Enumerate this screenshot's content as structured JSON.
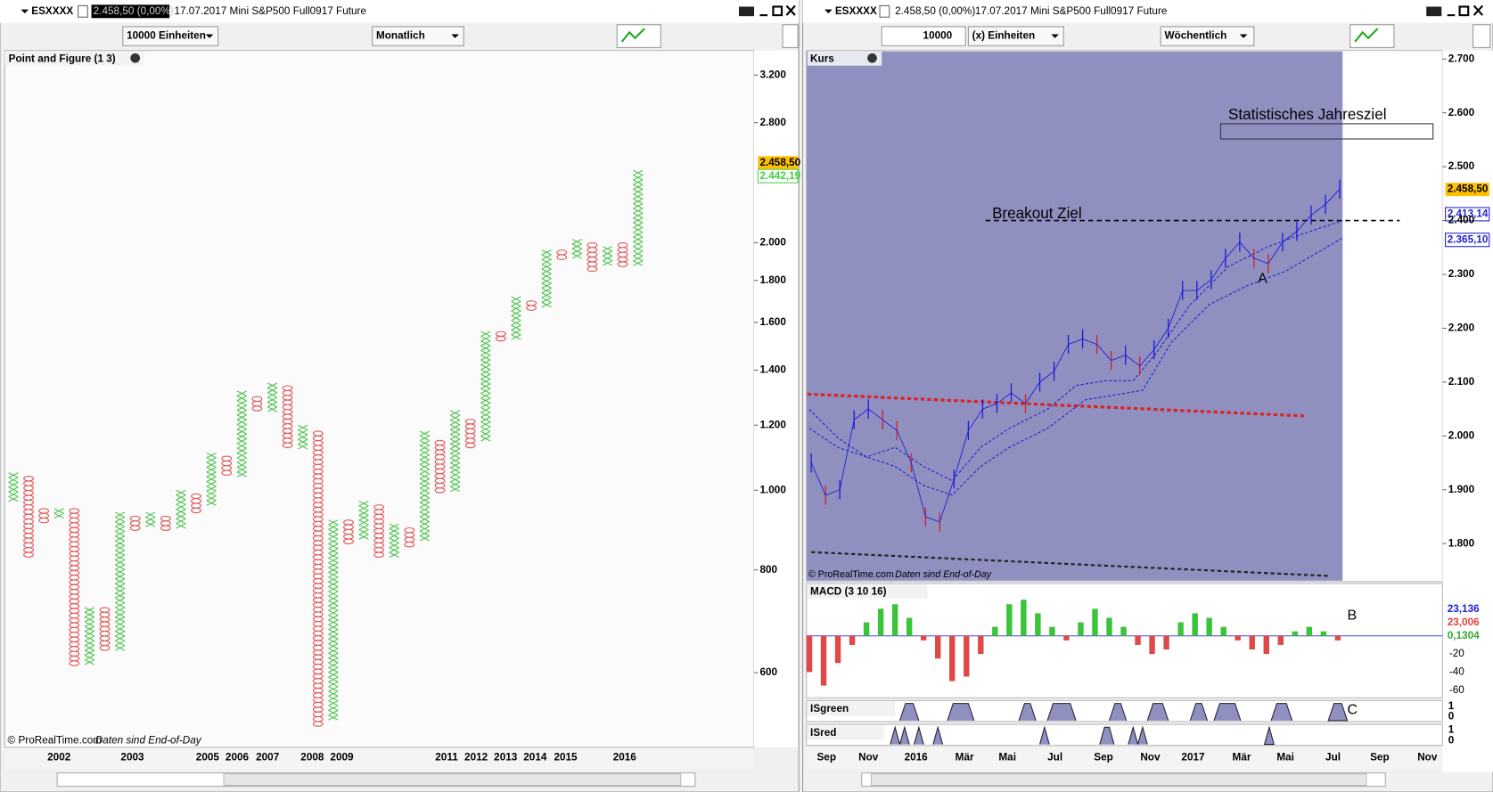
{
  "left_window": {
    "symbol": "ESXXXX",
    "quote": "2.458,50 (0,00%)",
    "description": "17.07.2017 Mini S&P500 Full0917 Future",
    "units": "10000 Einheiten",
    "period": "Monatlich",
    "panel_label": "Point and Figure (1 3)",
    "copyright": "© ProRealTime.com",
    "footer_note": "Daten sind End-of-Day",
    "price_badges": [
      "2.458,50",
      "2.442,19"
    ],
    "log_scale": true,
    "ylim": [
      515,
      3400
    ],
    "yticks": [
      600,
      800,
      {
        "value": 1000,
        "label": "1.000"
      },
      {
        "value": 1200,
        "label": "1.200"
      },
      {
        "value": 1400,
        "label": "1.400"
      },
      {
        "value": 1600,
        "label": "1.600"
      },
      {
        "value": 1800,
        "label": "1.800"
      },
      {
        "value": 2000,
        "label": "2.000"
      },
      {
        "value": 2800,
        "label": "2.800"
      },
      {
        "value": 3200,
        "label": "3.200"
      }
    ],
    "x_labels": [
      [
        "2002",
        62
      ],
      [
        "2003",
        139
      ],
      [
        "2005",
        218
      ],
      [
        "2006",
        249
      ],
      [
        "2007",
        281
      ],
      [
        "2008",
        328
      ],
      [
        "2009",
        359
      ],
      [
        "2011",
        469
      ],
      [
        "2012",
        500
      ],
      [
        "2013",
        531
      ],
      [
        "2014",
        562
      ],
      [
        "2015",
        594
      ],
      [
        "2016",
        656
      ]
    ],
    "columns": [
      {
        "type": "X",
        "low": 975,
        "high": 1050
      },
      {
        "type": "O",
        "low": 830,
        "high": 1040
      },
      {
        "type": "O",
        "low": 920,
        "high": 950
      },
      {
        "type": "X",
        "low": 930,
        "high": 950
      },
      {
        "type": "O",
        "low": 620,
        "high": 950
      },
      {
        "type": "X",
        "low": 620,
        "high": 720
      },
      {
        "type": "O",
        "low": 640,
        "high": 720
      },
      {
        "type": "X",
        "low": 640,
        "high": 940
      },
      {
        "type": "O",
        "low": 900,
        "high": 930
      },
      {
        "type": "X",
        "low": 910,
        "high": 940
      },
      {
        "type": "O",
        "low": 900,
        "high": 930
      },
      {
        "type": "X",
        "low": 910,
        "high": 1000
      },
      {
        "type": "O",
        "low": 950,
        "high": 990
      },
      {
        "type": "X",
        "low": 960,
        "high": 1110
      },
      {
        "type": "O",
        "low": 1050,
        "high": 1100
      },
      {
        "type": "X",
        "low": 1050,
        "high": 1320
      },
      {
        "type": "O",
        "low": 1250,
        "high": 1300
      },
      {
        "type": "X",
        "low": 1260,
        "high": 1350
      },
      {
        "type": "O",
        "low": 1130,
        "high": 1340
      },
      {
        "type": "X",
        "low": 1130,
        "high": 1200
      },
      {
        "type": "O",
        "low": 520,
        "high": 1180
      },
      {
        "type": "X",
        "low": 530,
        "high": 920
      },
      {
        "type": "O",
        "low": 870,
        "high": 920
      },
      {
        "type": "X",
        "low": 880,
        "high": 970
      },
      {
        "type": "O",
        "low": 830,
        "high": 960
      },
      {
        "type": "X",
        "low": 840,
        "high": 910
      },
      {
        "type": "O",
        "low": 860,
        "high": 900
      },
      {
        "type": "X",
        "low": 870,
        "high": 1180
      },
      {
        "type": "O",
        "low": 1000,
        "high": 1150
      },
      {
        "type": "X",
        "low": 1000,
        "high": 1250
      },
      {
        "type": "O",
        "low": 1140,
        "high": 1220
      },
      {
        "type": "X",
        "low": 1160,
        "high": 1560
      },
      {
        "type": "O",
        "low": 1520,
        "high": 1560
      },
      {
        "type": "X",
        "low": 1540,
        "high": 1720
      },
      {
        "type": "O",
        "low": 1660,
        "high": 1700
      },
      {
        "type": "X",
        "low": 1680,
        "high": 1960
      },
      {
        "type": "O",
        "low": 1920,
        "high": 1960
      },
      {
        "type": "X",
        "low": 1940,
        "high": 2020
      },
      {
        "type": "O",
        "low": 1850,
        "high": 2000
      },
      {
        "type": "X",
        "low": 1880,
        "high": 1980
      },
      {
        "type": "O",
        "low": 1880,
        "high": 2000
      },
      {
        "type": "X",
        "low": 1900,
        "high": 2450
      }
    ]
  },
  "right_window": {
    "symbol": "ESXXXX",
    "quote": "2.458,50 (0,00%)",
    "description": "17.07.2017 Mini S&P500 Full0917 Future",
    "quantity": "10000",
    "units": "(x) Einheiten",
    "period": "Wöchentlich",
    "panel_label": "Kurs",
    "target_label": "Statistisches Jahresziel",
    "breakout_label": "Breakout Ziel",
    "breakout_level": 2400,
    "marker_a": "A",
    "marker_b": "B",
    "marker_c": "C",
    "copyright": "© ProRealTime.com",
    "footer_note": "Daten sind End-of-Day",
    "price_badges": [
      "2.458,50",
      "2.413,14",
      "2.365,10"
    ],
    "ylim": [
      1750,
      2740
    ],
    "yticks": [
      {
        "value": 1800,
        "label": "1.800"
      },
      {
        "value": 1900,
        "label": "1.900"
      },
      {
        "value": 2000,
        "label": "2.000"
      },
      {
        "value": 2100,
        "label": "2.100"
      },
      {
        "value": 2200,
        "label": "2.200"
      },
      {
        "value": 2300,
        "label": "2.300"
      },
      {
        "value": 2400,
        "label": "2.400"
      },
      {
        "value": 2500,
        "label": "2.500"
      },
      {
        "value": 2600,
        "label": "2.600"
      },
      {
        "value": 2700,
        "label": "2.700"
      }
    ],
    "x_labels": [
      [
        "Sep",
        868
      ],
      [
        "Nov",
        912
      ],
      [
        "2016",
        962
      ],
      [
        "Mär",
        1013
      ],
      [
        "Mai",
        1058
      ],
      [
        "Jul",
        1108
      ],
      [
        "Sep",
        1159
      ],
      [
        "Nov",
        1208
      ],
      [
        "2017",
        1253
      ],
      [
        "Mär",
        1304
      ],
      [
        "Mai",
        1350
      ],
      [
        "Jul",
        1400
      ],
      [
        "Sep",
        1449
      ],
      [
        "Nov",
        1499
      ]
    ],
    "closes": [
      1950,
      1890,
      1900,
      2030,
      2050,
      2030,
      2010,
      1950,
      1850,
      1840,
      1920,
      2010,
      2050,
      2060,
      2080,
      2060,
      2100,
      2120,
      2170,
      2180,
      2170,
      2140,
      2150,
      2130,
      2160,
      2200,
      2270,
      2270,
      2290,
      2330,
      2360,
      2330,
      2320,
      2360,
      2380,
      2410,
      2430,
      2458.5
    ],
    "macd": {
      "label": "MACD (3 10 16)",
      "badges": [
        "23,136",
        "23,006",
        "0,1304"
      ],
      "yticks": [
        "-20",
        "-40",
        "-60"
      ],
      "histogram": [
        -40,
        -55,
        -30,
        -10,
        15,
        30,
        35,
        20,
        -5,
        -25,
        -50,
        -45,
        -20,
        10,
        35,
        40,
        25,
        10,
        -5,
        15,
        30,
        20,
        10,
        -10,
        -20,
        -15,
        15,
        25,
        20,
        10,
        -5,
        -15,
        -20,
        -10,
        5,
        10,
        5,
        -5
      ]
    },
    "isgreen": {
      "label": "ISgreen",
      "yticks": [
        "1",
        "0"
      ]
    },
    "isred": {
      "label": "ISred",
      "yticks": [
        "1",
        "0"
      ]
    }
  }
}
